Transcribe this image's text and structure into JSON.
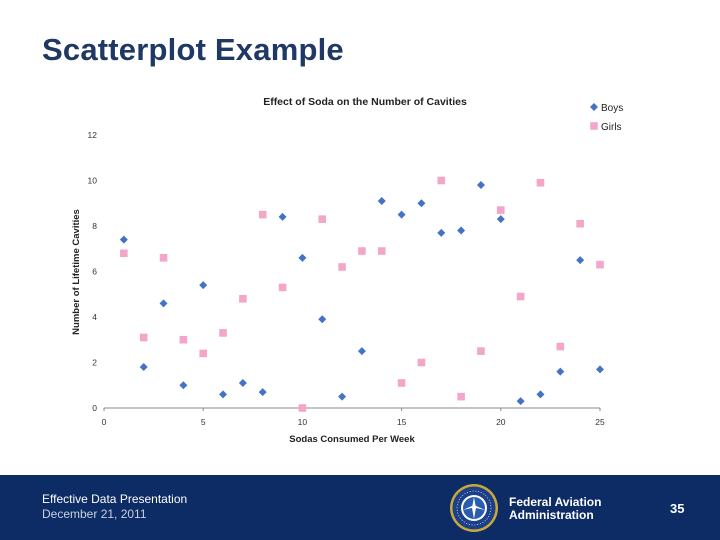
{
  "slide": {
    "title": "Scatterplot Example"
  },
  "footer": {
    "presentation": "Effective Data Presentation",
    "date": "December 21, 2011",
    "agency_line1": "Federal Aviation",
    "agency_line2": "Administration",
    "page_number": "35",
    "seal_text": "FEDERAL AVIATION ADMINISTRATION",
    "colors": {
      "background": "#0d2b64",
      "text": "#ffffff"
    }
  },
  "chart_data": {
    "type": "scatter",
    "title": "Effect of Soda on the Number of Cavities",
    "xlabel": "Sodas Consumed Per Week",
    "ylabel": "Number of Lifetime Cavities",
    "xlim": [
      0,
      25
    ],
    "ylim": [
      0,
      12
    ],
    "xticks": [
      "0",
      "5",
      "10",
      "15",
      "20",
      "25"
    ],
    "yticks": [
      "0",
      "2",
      "4",
      "6",
      "8",
      "10",
      "12"
    ],
    "legend_position": "top-right",
    "series": [
      {
        "name": "Boys",
        "marker": "diamond",
        "color": "#4472c4",
        "points": [
          [
            1,
            7.4
          ],
          [
            2,
            1.8
          ],
          [
            3,
            4.6
          ],
          [
            4,
            1.0
          ],
          [
            5,
            5.4
          ],
          [
            6,
            0.6
          ],
          [
            7,
            1.1
          ],
          [
            8,
            0.7
          ],
          [
            9,
            8.4
          ],
          [
            10,
            6.6
          ],
          [
            11,
            3.9
          ],
          [
            12,
            0.5
          ],
          [
            13,
            2.5
          ],
          [
            14,
            9.1
          ],
          [
            15,
            8.5
          ],
          [
            16,
            9.0
          ],
          [
            17,
            7.7
          ],
          [
            18,
            7.8
          ],
          [
            19,
            9.8
          ],
          [
            20,
            8.3
          ],
          [
            21,
            0.3
          ],
          [
            22,
            0.6
          ],
          [
            23,
            1.6
          ],
          [
            24,
            6.5
          ],
          [
            25,
            1.7
          ]
        ]
      },
      {
        "name": "Girls",
        "marker": "square",
        "color": "#f4a6c8",
        "points": [
          [
            1,
            6.8
          ],
          [
            2,
            3.1
          ],
          [
            3,
            6.6
          ],
          [
            4,
            3.0
          ],
          [
            5,
            2.4
          ],
          [
            6,
            3.3
          ],
          [
            7,
            4.8
          ],
          [
            8,
            8.5
          ],
          [
            9,
            5.3
          ],
          [
            10,
            0.0
          ],
          [
            11,
            8.3
          ],
          [
            12,
            6.2
          ],
          [
            13,
            6.9
          ],
          [
            14,
            6.9
          ],
          [
            15,
            1.1
          ],
          [
            16,
            2.0
          ],
          [
            17,
            10.0
          ],
          [
            18,
            0.5
          ],
          [
            19,
            2.5
          ],
          [
            20,
            8.7
          ],
          [
            21,
            4.9
          ],
          [
            22,
            9.9
          ],
          [
            23,
            2.7
          ],
          [
            24,
            8.1
          ],
          [
            25,
            6.3
          ]
        ]
      }
    ]
  }
}
